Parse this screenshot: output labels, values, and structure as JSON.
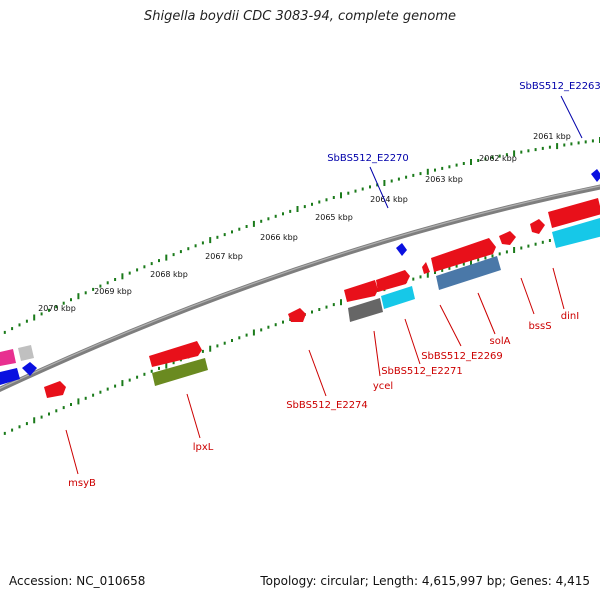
{
  "title": "Shigella boydii CDC 3083-94, complete genome",
  "footer": {
    "accession": "Accession: NC_010658",
    "topology": "Topology: circular; Length: 4,615,997 bp; Genes: 4,415"
  },
  "colors": {
    "backbone": "#8a8a8a",
    "tick": "#1a7a1a",
    "gene_label": "#cc0000",
    "locus_label": "#0000aa",
    "cds_red": "#e8101a",
    "cds_cyan": "#16c8e8",
    "cds_steel": "#4a78a8",
    "cds_olive": "#6a8a20",
    "cds_gray": "#666666",
    "cds_blue": "#0a10e0",
    "cds_pink": "#e83090",
    "cds_lightgray": "#c0c0c0"
  },
  "scale_labels": [
    "2070 kbp",
    "2069 kbp",
    "2068 kbp",
    "2067 kbp",
    "2066 kbp",
    "2065 kbp",
    "2064 kbp",
    "2063 kbp",
    "2062 kbp",
    "2061 kbp"
  ],
  "outer_labels": [
    {
      "text": "SbBS512_E2263",
      "color": "locus"
    },
    {
      "text": "SbBS512_E2270",
      "color": "locus"
    }
  ],
  "inner_labels": [
    "dinI",
    "bssS",
    "solA",
    "SbBS512_E2269",
    "SbBS512_E2271",
    "ycel",
    "SbBS512_E2274",
    "lpxL",
    "msyB"
  ]
}
